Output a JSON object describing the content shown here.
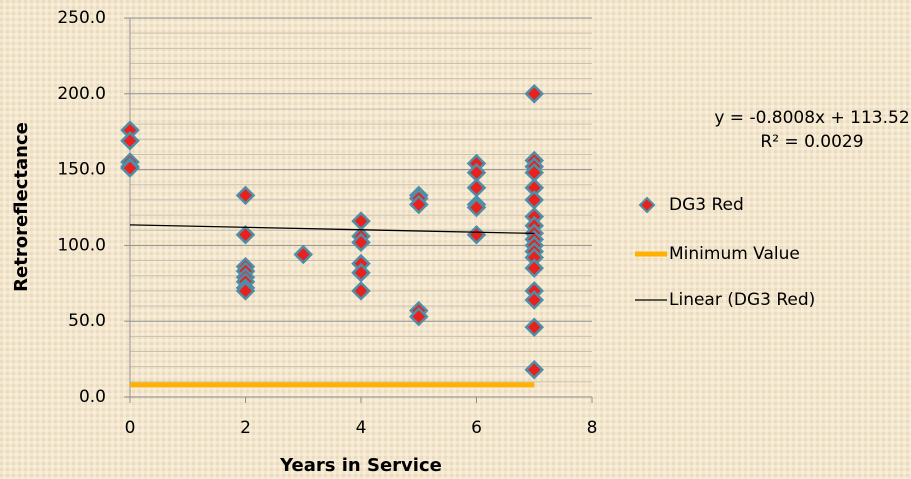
{
  "chart_data": {
    "type": "scatter",
    "xlabel": "Years in Service",
    "ylabel": "Retroreflectance",
    "xlim": [
      0,
      8
    ],
    "xticks": [
      0,
      2,
      4,
      6,
      8
    ],
    "ylim": [
      0,
      250
    ],
    "yticks": [
      {
        "value": 0,
        "label": "0.0"
      },
      {
        "value": 50,
        "label": "50.0"
      },
      {
        "value": 100,
        "label": "100.0"
      },
      {
        "value": 150,
        "label": "150.0"
      },
      {
        "value": 200,
        "label": "200.0"
      },
      {
        "value": 250,
        "label": "250.0"
      }
    ],
    "yminorticks": [
      10,
      20,
      30,
      40,
      60,
      70,
      80,
      90,
      110,
      120,
      130,
      140,
      160,
      170,
      180,
      190,
      210,
      220,
      230,
      240
    ],
    "grid": true,
    "legend": "right",
    "annotations": [
      "y = -0.8008x + 113.52",
      "R² = 0.0029"
    ],
    "series": [
      {
        "name": "DG3 Red",
        "mode": "markers",
        "color": "#e8211d",
        "edgecolor": "#4f8ea8",
        "x": [
          0,
          0,
          0,
          0,
          0,
          2,
          2,
          2,
          2,
          2,
          2,
          2,
          2,
          3,
          4,
          4,
          4,
          4,
          4,
          4,
          5,
          5,
          5,
          5,
          5,
          6,
          6,
          6,
          6,
          6,
          6,
          7,
          7,
          7,
          7,
          7,
          7,
          7,
          7,
          7,
          7,
          7,
          7,
          7,
          7,
          7,
          7,
          7,
          7
        ],
        "values": [
          176,
          169,
          155,
          152,
          151,
          133,
          107,
          86,
          83,
          79,
          76,
          72,
          70,
          94,
          116,
          106,
          102,
          88,
          82,
          70,
          133,
          131,
          127,
          57,
          53,
          154,
          148,
          138,
          127,
          125,
          107,
          200,
          156,
          152,
          148,
          138,
          130,
          119,
          113,
          108,
          104,
          100,
          96,
          92,
          85,
          70,
          64,
          46,
          18
        ]
      },
      {
        "name": "Minimum Value",
        "mode": "line",
        "color": "#ffb000",
        "x": [
          0,
          7
        ],
        "values": [
          8,
          8
        ]
      },
      {
        "name": "Linear (DG3 Red)",
        "mode": "line",
        "color": "#000000",
        "x": [
          0,
          7
        ],
        "values": [
          113.52,
          107.91
        ]
      }
    ]
  }
}
